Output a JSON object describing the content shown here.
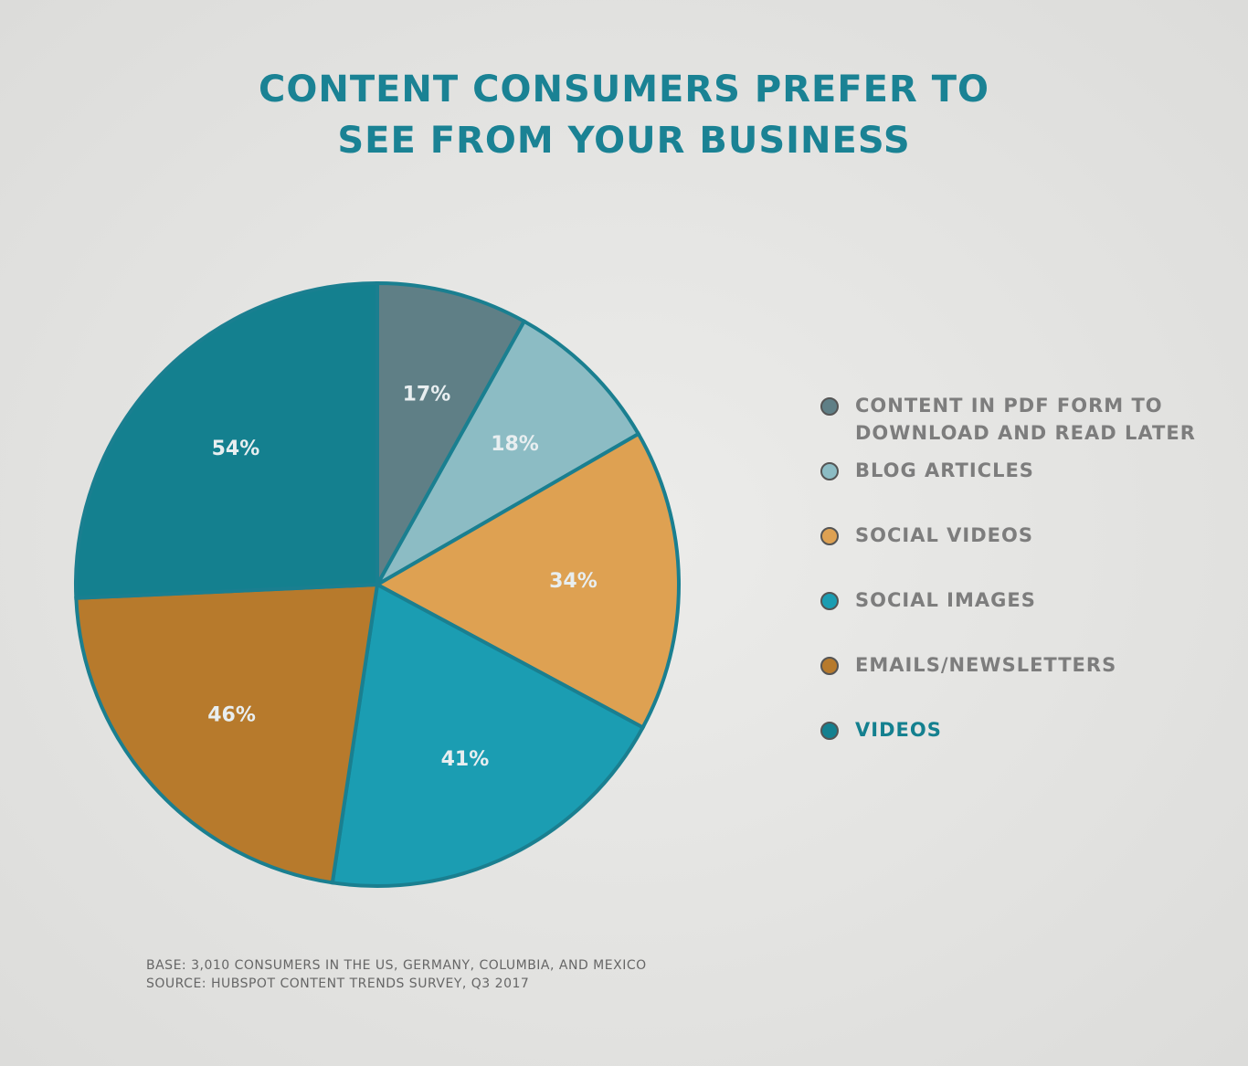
{
  "chart_data": {
    "type": "pie",
    "title": "CONTENT CONSUMERS PREFER TO SEE FROM YOUR BUSINESS",
    "categories": [
      "CONTENT IN PDF FORM TO DOWNLOAD AND READ LATER",
      "BLOG ARTICLES",
      "SOCIAL VIDEOS",
      "SOCIAL IMAGES",
      "EMAILS/NEWSLETTERS",
      "VIDEOS"
    ],
    "values": [
      17,
      18,
      34,
      41,
      46,
      54
    ],
    "value_labels": [
      "17%",
      "18%",
      "34%",
      "41%",
      "46%",
      "54%"
    ],
    "colors": [
      "#5f7f86",
      "#8cbcc4",
      "#dea152",
      "#1b9db2",
      "#b77a2c",
      "#14808f"
    ],
    "notes": [
      "BASE: 3,010 CONSUMERS IN THE US, GERMANY, COLUMBIA, AND MEXICO",
      "SOURCE: HUBSPOT CONTENT TRENDS SURVEY, Q3 2017"
    ]
  }
}
